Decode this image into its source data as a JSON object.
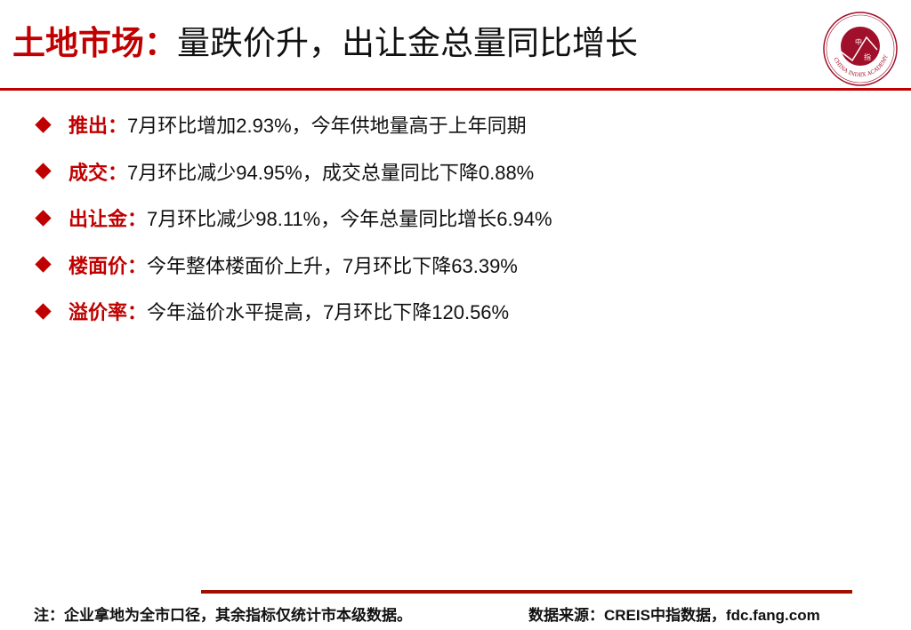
{
  "header": {
    "title_highlight": "土地市场：",
    "title_rest": "量跌价升，出让金总量同比增长",
    "logo_text": "CHINA INDEX ACADEMY",
    "accent_color": "#c00000"
  },
  "items": [
    {
      "key": "推出：",
      "text": "7月环比增加2.93%，今年供地量高于上年同期"
    },
    {
      "key": "成交：",
      "text": "7月环比减少94.95%，成交总量同比下降0.88%"
    },
    {
      "key": "出让金：",
      "text": "7月环比减少98.11%，今年总量同比增长6.94%"
    },
    {
      "key": "楼面价：",
      "text": "今年整体楼面价上升，7月环比下降63.39%"
    },
    {
      "key": "溢价率：",
      "text": "今年溢价水平提高，7月环比下降120.56%"
    }
  ],
  "footer": {
    "note": "注：企业拿地为全市口径，其余指标仅统计市本级数据。",
    "source": "数据来源：CREIS中指数据，fdc.fang.com"
  }
}
